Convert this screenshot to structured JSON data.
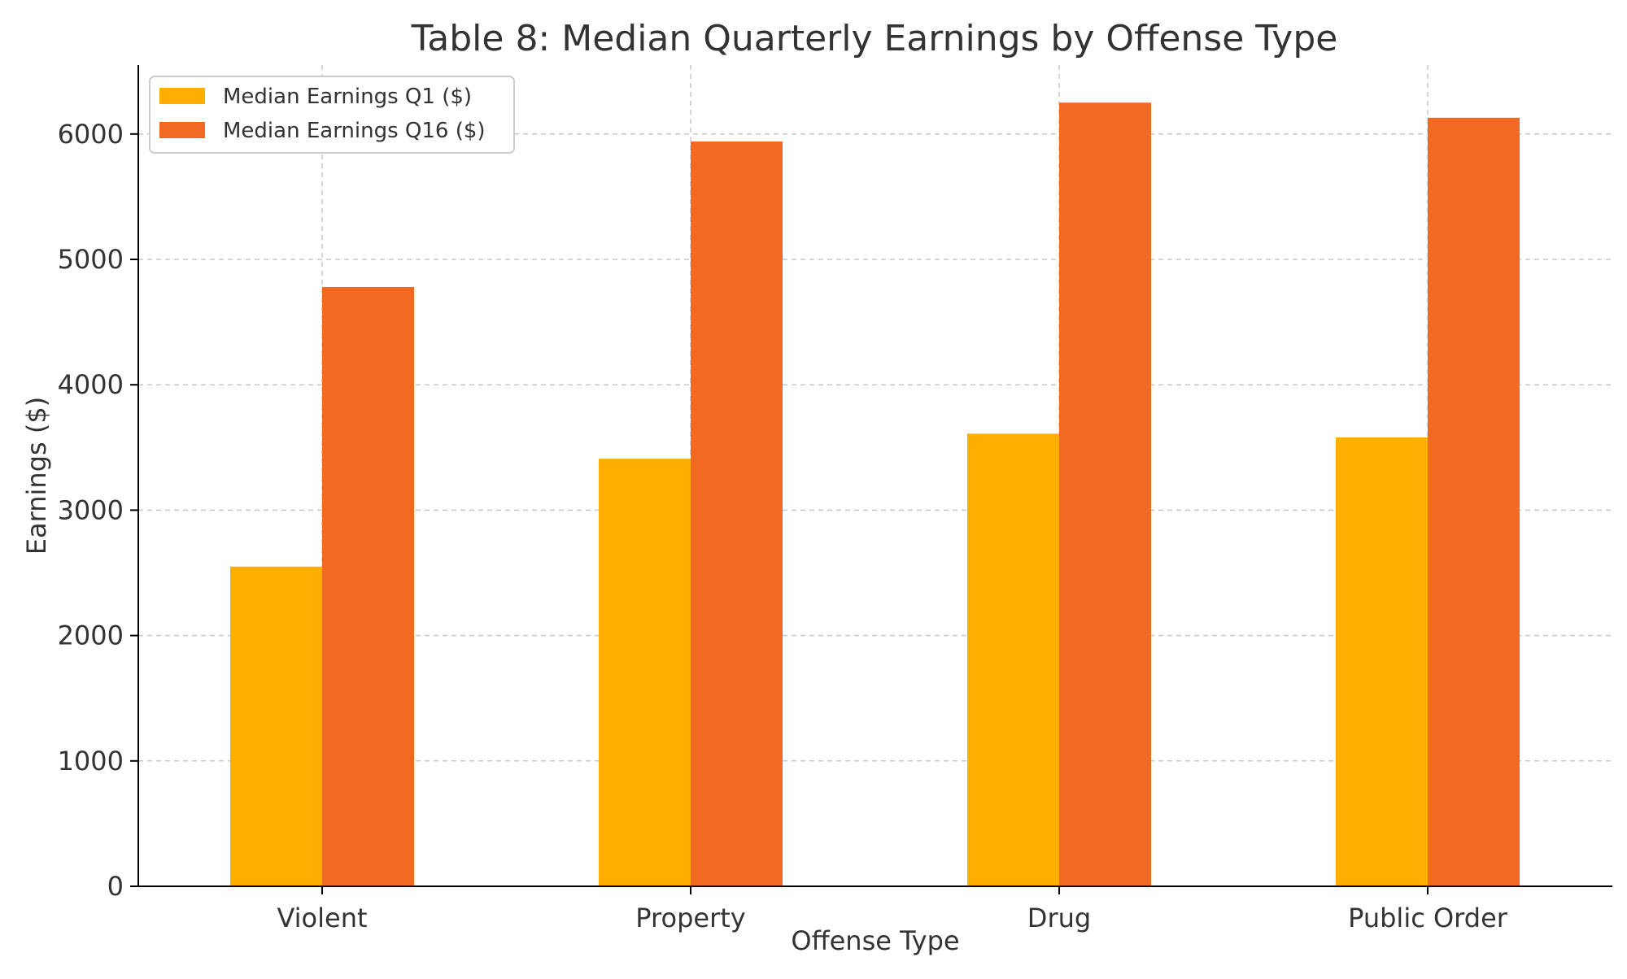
{
  "chart_data": {
    "type": "bar",
    "title": "Table 8: Median Quarterly Earnings by Offense Type",
    "xlabel": "Offense Type",
    "ylabel": "Earnings ($)",
    "categories": [
      "Violent",
      "Property",
      "Drug",
      "Public Order"
    ],
    "series": [
      {
        "name": "Median Earnings Q1 ($)",
        "color": "#FFAE00",
        "values": [
          2550,
          3410,
          3610,
          3580
        ]
      },
      {
        "name": "Median Earnings Q16 ($)",
        "color": "#F26922",
        "values": [
          4780,
          5940,
          6250,
          6130
        ]
      }
    ],
    "ylim": [
      0,
      6550
    ],
    "yticks": [
      0,
      1000,
      2000,
      3000,
      4000,
      5000,
      6000
    ],
    "grid": true,
    "legend_position": "top-left"
  }
}
